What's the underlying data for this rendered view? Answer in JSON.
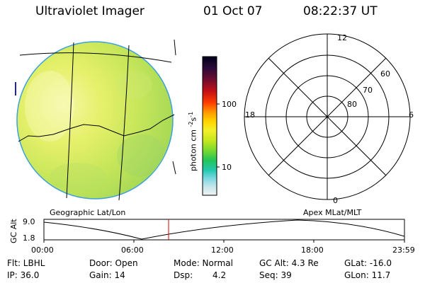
{
  "header": {
    "title": "Ultraviolet Imager",
    "date": "01 Oct 07",
    "time": "08:22:37 UT"
  },
  "image_panel": {
    "label": "Geographic Lat/Lon"
  },
  "colorbar": {
    "unit_text": "photon cm",
    "unit_sup1": "-2",
    "unit_mid": "s",
    "unit_sup2": "-1",
    "ticks": [
      "100",
      "10"
    ]
  },
  "polar_panel": {
    "label": "Apex MLat/MLT",
    "mlt_labels": {
      "top": "12",
      "bottom": "0",
      "left": "18",
      "right": "6"
    },
    "mlat_labels": [
      "60",
      "70",
      "80"
    ]
  },
  "timeline": {
    "ylabel": "GC Alt",
    "y_top": "9.0",
    "y_bottom": "1.8",
    "x_ticks": [
      "00:00",
      "06:00",
      "12:00",
      "18:00",
      "23:59"
    ],
    "current_marker_color": "#dd0000"
  },
  "info": {
    "flt": "Flt: LBHL",
    "ip": "IP: 36.0",
    "door": "Door: Open",
    "gain": "Gain: 14",
    "mode": "Mode: Normal",
    "dsp_label": "Dsp:",
    "dsp_value": "4.2",
    "gc_alt": "GC Alt: 4.3 Re",
    "seq": "Seq: 39",
    "glat": "GLat: -16.0",
    "glon": "GLon: 11.7"
  }
}
